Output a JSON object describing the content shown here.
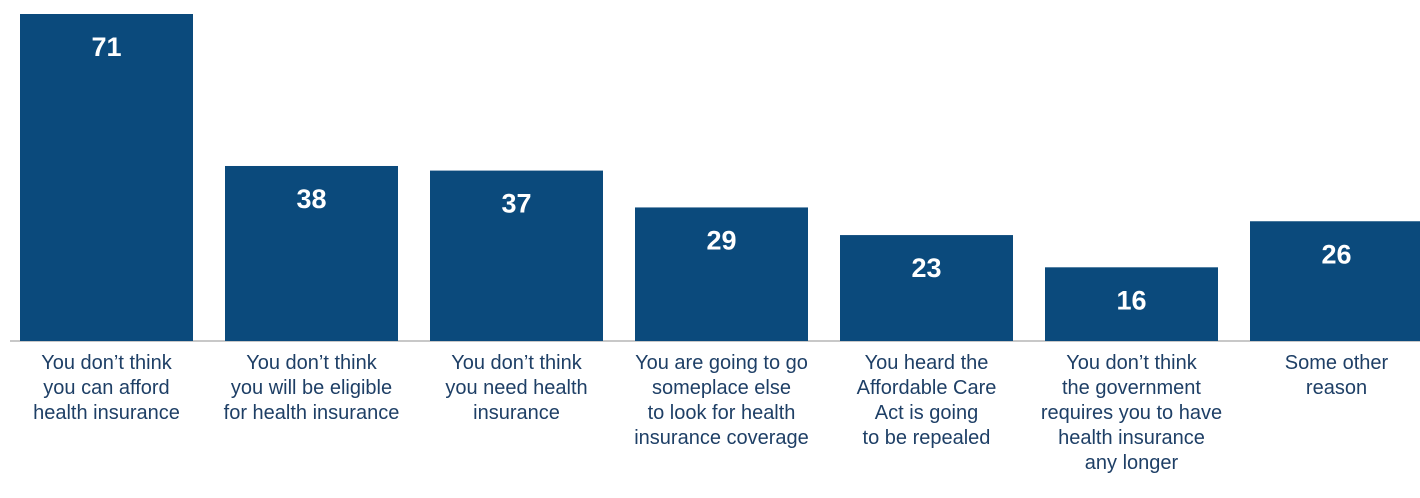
{
  "chart_data": {
    "type": "bar",
    "categories": [
      "You don’t think you can afford health insurance",
      "You don’t think you will be eligible for health insurance",
      "You don’t think you need health insurance",
      "You are going to go someplace else to look for health insurance coverage",
      "You heard the Affordable Care Act is going to be repealed",
      "You don’t think the government requires you to have health insurance any longer",
      "Some other reason"
    ],
    "category_lines": [
      [
        "You don’t think",
        "you can afford",
        "health insurance"
      ],
      [
        "You don’t think",
        "you will be eligible",
        "for health insurance"
      ],
      [
        "You don’t think",
        "you need health",
        "insurance"
      ],
      [
        "You are going to go",
        "someplace else",
        "to look for health",
        "insurance coverage"
      ],
      [
        "You heard the",
        "Affordable Care",
        "Act is going",
        "to be repealed"
      ],
      [
        "You don’t think",
        "the government",
        "requires you to have",
        "health insurance",
        "any longer"
      ],
      [
        "Some other",
        "reason"
      ]
    ],
    "values": [
      71,
      38,
      37,
      29,
      23,
      16,
      26
    ],
    "value_labels": [
      "71",
      "38",
      "37",
      "29",
      "23",
      "16",
      "26"
    ],
    "ylim": [
      0,
      72
    ],
    "grid": false,
    "bar_color": "#0b4a7c",
    "value_label_color": "#ffffff",
    "category_label_color": "#1e3f66"
  }
}
